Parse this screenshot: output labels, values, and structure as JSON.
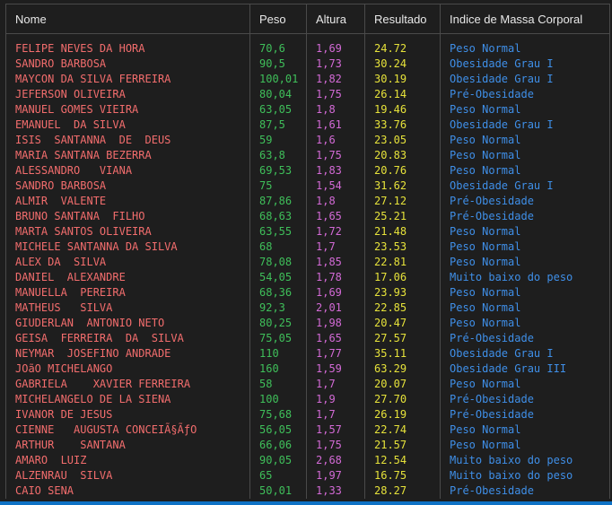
{
  "headers": {
    "nome": "Nome",
    "peso": "Peso",
    "altura": "Altura",
    "resultado": "Resultado",
    "imc": "Indice de Massa Corporal"
  },
  "colors": {
    "background": "#1e1e1e",
    "nome": "#f26d6d",
    "peso": "#3fbf5a",
    "altura": "#d36ad6",
    "resultado": "#e6e23a",
    "imc": "#3f8fe8",
    "status_bar": "#0f72c5"
  },
  "rows": [
    {
      "nome": "FELIPE NEVES DA HORA",
      "peso": "70,6",
      "altura": "1,69",
      "resultado": "24.72",
      "imc": "Peso Normal"
    },
    {
      "nome": "SANDRO BARBOSA",
      "peso": "90,5",
      "altura": "1,73",
      "resultado": "30.24",
      "imc": "Obesidade Grau I"
    },
    {
      "nome": "MAYCON DA SILVA FERREIRA",
      "peso": "100,01",
      "altura": "1,82",
      "resultado": "30.19",
      "imc": "Obesidade Grau I"
    },
    {
      "nome": "JEFERSON OLIVEIRA",
      "peso": "80,04",
      "altura": "1,75",
      "resultado": "26.14",
      "imc": "Pré-Obesidade"
    },
    {
      "nome": "MANUEL GOMES VIEIRA",
      "peso": "63,05",
      "altura": "1,8",
      "resultado": "19.46",
      "imc": "Peso Normal"
    },
    {
      "nome": "EMANUEL  DA SILVA",
      "peso": "87,5",
      "altura": "1,61",
      "resultado": "33.76",
      "imc": "Obesidade Grau I"
    },
    {
      "nome": "ISIS  SANTANNA  DE  DEUS",
      "peso": "59",
      "altura": "1,6",
      "resultado": "23.05",
      "imc": "Peso Normal"
    },
    {
      "nome": "MARIA SANTANA BEZERRA",
      "peso": "63,8",
      "altura": "1,75",
      "resultado": "20.83",
      "imc": "Peso Normal"
    },
    {
      "nome": "ALESSANDRO   VIANA",
      "peso": "69,53",
      "altura": "1,83",
      "resultado": "20.76",
      "imc": "Peso Normal"
    },
    {
      "nome": "SANDRO BARBOSA",
      "peso": "75",
      "altura": "1,54",
      "resultado": "31.62",
      "imc": "Obesidade Grau I"
    },
    {
      "nome": "ALMIR  VALENTE",
      "peso": "87,86",
      "altura": "1,8",
      "resultado": "27.12",
      "imc": "Pré-Obesidade"
    },
    {
      "nome": "BRUNO SANTANA  FILHO",
      "peso": "68,63",
      "altura": "1,65",
      "resultado": "25.21",
      "imc": "Pré-Obesidade"
    },
    {
      "nome": "MARTA SANTOS OLIVEIRA",
      "peso": "63,55",
      "altura": "1,72",
      "resultado": "21.48",
      "imc": "Peso Normal"
    },
    {
      "nome": "MICHELE SANTANNA DA SILVA",
      "peso": "68",
      "altura": "1,7",
      "resultado": "23.53",
      "imc": "Peso Normal"
    },
    {
      "nome": "ALEX DA  SILVA",
      "peso": "78,08",
      "altura": "1,85",
      "resultado": "22.81",
      "imc": "Peso Normal"
    },
    {
      "nome": "DANIEL  ALEXANDRE",
      "peso": "54,05",
      "altura": "1,78",
      "resultado": "17.06",
      "imc": "Muito baixo do peso"
    },
    {
      "nome": "MANUELLA  PEREIRA",
      "peso": "68,36",
      "altura": "1,69",
      "resultado": "23.93",
      "imc": "Peso Normal"
    },
    {
      "nome": "MATHEUS   SILVA",
      "peso": "92,3",
      "altura": "2,01",
      "resultado": "22.85",
      "imc": "Peso Normal"
    },
    {
      "nome": "GIUDERLAN  ANTONIO NETO",
      "peso": "80,25",
      "altura": "1,98",
      "resultado": "20.47",
      "imc": "Peso Normal"
    },
    {
      "nome": "GEISA  FERREIRA  DA  SILVA",
      "peso": "75,05",
      "altura": "1,65",
      "resultado": "27.57",
      "imc": "Pré-Obesidade"
    },
    {
      "nome": "NEYMAR  JOSEFINO ANDRADE",
      "peso": "110",
      "altura": "1,77",
      "resultado": "35.11",
      "imc": "Obesidade Grau I"
    },
    {
      "nome": "JOãO MICHELANGO",
      "peso": "160",
      "altura": "1,59",
      "resultado": "63.29",
      "imc": "Obesidade Grau III"
    },
    {
      "nome": "GABRIELA    XAVIER FERREIRA",
      "peso": "58",
      "altura": "1,7",
      "resultado": "20.07",
      "imc": "Peso Normal"
    },
    {
      "nome": "MICHELANGELO DE LA SIENA",
      "peso": "100",
      "altura": "1,9",
      "resultado": "27.70",
      "imc": "Pré-Obesidade"
    },
    {
      "nome": "IVANOR DE JESUS",
      "peso": "75,68",
      "altura": "1,7",
      "resultado": "26.19",
      "imc": "Pré-Obesidade"
    },
    {
      "nome": "CIENNE   AUGUSTA CONCEIÃ§ÃƒO",
      "peso": "56,05",
      "altura": "1,57",
      "resultado": "22.74",
      "imc": "Peso Normal"
    },
    {
      "nome": "ARTHUR    SANTANA",
      "peso": "66,06",
      "altura": "1,75",
      "resultado": "21.57",
      "imc": "Peso Normal"
    },
    {
      "nome": "AMARO  LUIZ",
      "peso": "90,05",
      "altura": "2,68",
      "resultado": "12.54",
      "imc": "Muito baixo do peso"
    },
    {
      "nome": "ALZENRAU  SILVA",
      "peso": "65",
      "altura": "1,97",
      "resultado": "16.75",
      "imc": "Muito baixo do peso"
    },
    {
      "nome": "CAIO SENA",
      "peso": "50,01",
      "altura": "1,33",
      "resultado": "28.27",
      "imc": "Pré-Obesidade"
    }
  ]
}
